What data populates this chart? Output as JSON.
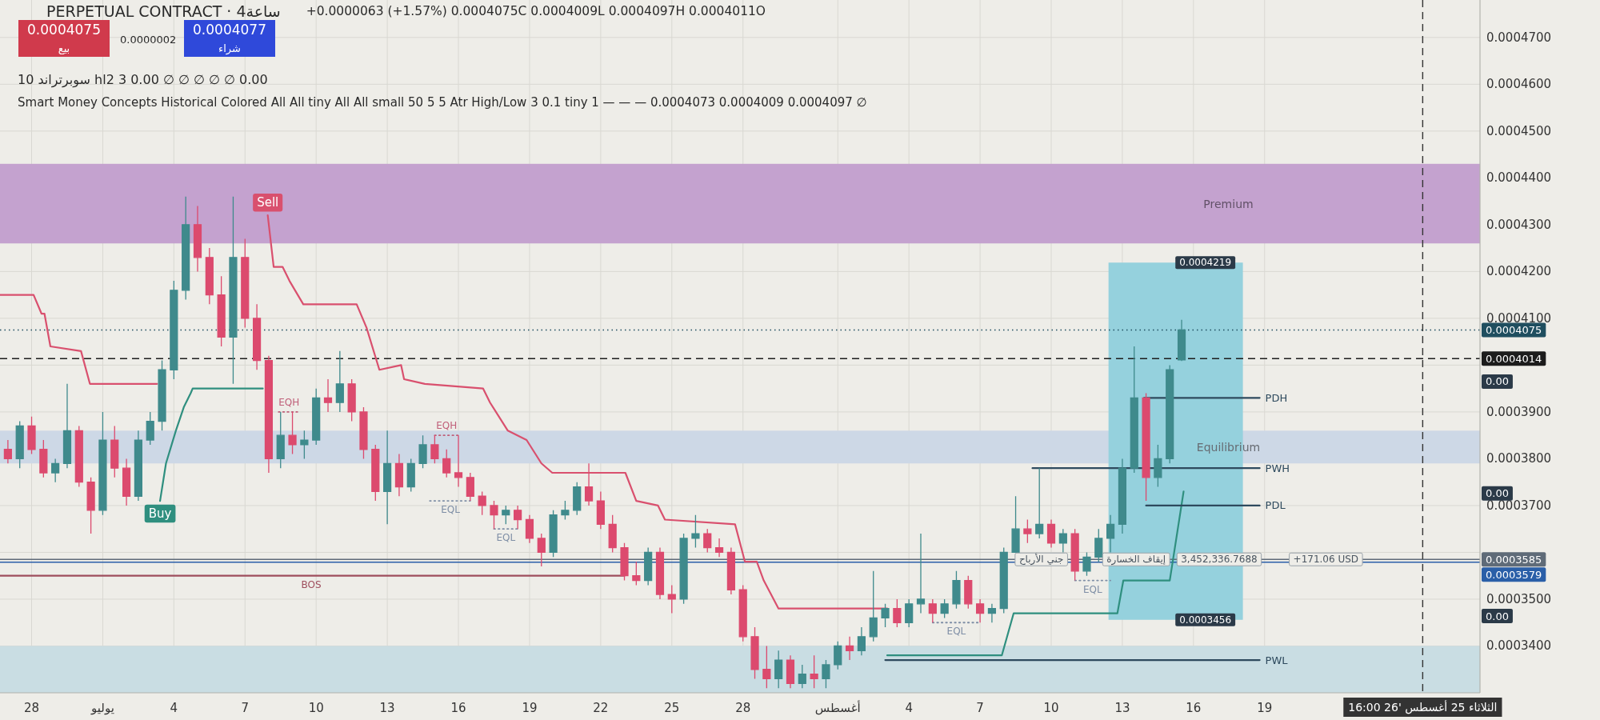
{
  "chart_data": {
    "type": "candlestick",
    "title": "PERPETUAL CONTRACT · 4ساعة",
    "subtitle": "+0.0000063 (+1.57%) 0.0004075C 0.0004009L 0.0004097H 0.0004011O",
    "xlim": [
      "2026-06-26T16:00",
      "2026-08-28T02:00"
    ],
    "xticks": [
      {
        "value": "2026-06-28",
        "label": "28"
      },
      {
        "value": "2026-07-01",
        "label": "يوليو"
      },
      {
        "value": "2026-07-04",
        "label": "4"
      },
      {
        "value": "2026-07-07",
        "label": "7"
      },
      {
        "value": "2026-07-10",
        "label": "10"
      },
      {
        "value": "2026-07-13",
        "label": "13"
      },
      {
        "value": "2026-07-16",
        "label": "16"
      },
      {
        "value": "2026-07-19",
        "label": "19"
      },
      {
        "value": "2026-07-22",
        "label": "22"
      },
      {
        "value": "2026-07-25",
        "label": "25"
      },
      {
        "value": "2026-07-28",
        "label": "28"
      },
      {
        "value": "2026-08-01",
        "label": "أغسطس"
      },
      {
        "value": "2026-08-04",
        "label": "4"
      },
      {
        "value": "2026-08-07",
        "label": "7"
      },
      {
        "value": "2026-08-10",
        "label": "10"
      },
      {
        "value": "2026-08-13",
        "label": "13"
      },
      {
        "value": "2026-08-16",
        "label": "16"
      },
      {
        "value": "2026-08-19",
        "label": "19"
      }
    ],
    "ylim": [
      0.00033,
      0.000478
    ],
    "yticks": [
      {
        "value": 0.00034,
        "label": "0.0003400"
      },
      {
        "value": 0.00035,
        "label": "0.0003500"
      },
      {
        "value": 0.00036,
        "label": null
      },
      {
        "value": 0.00037,
        "label": "0.0003700"
      },
      {
        "value": 0.00038,
        "label": "0.0003800"
      },
      {
        "value": 0.00039,
        "label": "0.0003900"
      },
      {
        "value": 0.0004,
        "label": null
      },
      {
        "value": 0.00041,
        "label": "0.0004100"
      },
      {
        "value": 0.00042,
        "label": "0.0004200"
      },
      {
        "value": 0.00043,
        "label": "0.0004300"
      },
      {
        "value": 0.00044,
        "label": "0.0004400"
      },
      {
        "value": 0.00045,
        "label": "0.0004500"
      },
      {
        "value": 0.00046,
        "label": "0.0004600"
      },
      {
        "value": 0.00047,
        "label": "0.0004700"
      }
    ],
    "grid": true,
    "bands": [
      {
        "axis": "y",
        "from": 0.000426,
        "to": 0.000443,
        "label": "Premium",
        "color": "#c4a2cf"
      },
      {
        "axis": "y",
        "from": 0.000379,
        "to": 0.000386,
        "label": "Equilibrium",
        "color": "#cdd8e6"
      },
      {
        "axis": "y",
        "from": 0.00033,
        "to": 0.00034,
        "color": "#c9dde3"
      }
    ],
    "series": [
      {
        "type": "line",
        "color": "#4fb3c6",
        "x": [
          "2026-08-12T10:00",
          "2026-08-18T02:00"
        ],
        "values": [
          null,
          null
        ],
        "lower": [
          0.0003456,
          0.0003456
        ],
        "upper": [
          0.0004219,
          0.0004219
        ]
      },
      {
        "type": "line",
        "color": "#d9506e",
        "x": [
          "2026-06-26T16:00",
          "2026-06-28T02:00",
          "2026-06-28T10:00",
          "2026-06-28T13:00",
          "2026-06-28T19:00",
          "2026-06-30T02:00",
          "2026-06-30T11:00",
          "2026-07-03T07:00"
        ],
        "values": [
          0.000415,
          0.000415,
          0.000411,
          0.000411,
          0.000404,
          0.000403,
          0.000396,
          0.000396
        ]
      },
      {
        "type": "line",
        "color": "#d9506e",
        "x": [
          "2026-07-07T23:00",
          "2026-07-08T05:00",
          "2026-07-08T14:00",
          "2026-07-08T21:00",
          "2026-07-09T11:00",
          "2026-07-11T17:00",
          "2026-07-12T03:00",
          "2026-07-12T16:00",
          "2026-07-13T14:00",
          "2026-07-13T17:00",
          "2026-07-14T14:00",
          "2026-07-17T01:00",
          "2026-07-17T08:00",
          "2026-07-18T02:00",
          "2026-07-18T21:00",
          "2026-07-19T12:00",
          "2026-07-19T23:00",
          "2026-07-23T01:00",
          "2026-07-23T12:00",
          "2026-07-24T10:00",
          "2026-07-24T17:00",
          "2026-07-27T16:00",
          "2026-07-27T21:00",
          "2026-07-28T02:00",
          "2026-07-28T14:00",
          "2026-07-28T21:00",
          "2026-07-29T12:00",
          "2026-08-03T02:00"
        ],
        "values": [
          0.000432,
          0.000421,
          0.000421,
          0.000418,
          0.000413,
          0.000413,
          0.000408,
          0.000399,
          0.0004,
          0.000397,
          0.000396,
          0.000395,
          0.000392,
          0.000386,
          0.000384,
          0.000379,
          0.000377,
          0.000377,
          0.000371,
          0.00037,
          0.000367,
          0.000366,
          0.000362,
          0.000358,
          0.000358,
          0.000354,
          0.000348,
          0.000348
        ],
        "value_labels": [
          "Sell",
          null,
          null,
          null,
          null,
          null,
          null,
          null,
          null,
          null,
          null,
          null,
          null,
          null,
          null,
          null,
          null,
          null,
          null,
          null,
          null,
          null,
          null,
          null,
          null,
          null,
          null,
          null
        ]
      },
      {
        "type": "line",
        "color": "#2f8f7f",
        "x": [
          "2026-07-03T10:00",
          "2026-07-03T16:00",
          "2026-07-04T02:00",
          "2026-07-04T10:00",
          "2026-07-04T17:00",
          "2026-07-04T19:00",
          "2026-07-07T18:00"
        ],
        "values": [
          0.000371,
          0.000379,
          0.000386,
          0.000391,
          0.000394,
          0.000395,
          0.000395
        ],
        "value_labels": [
          "Buy",
          null,
          null,
          null,
          null,
          null,
          null
        ]
      },
      {
        "type": "line",
        "color": "#2f8f7f",
        "x": [
          "2026-08-03T02:00",
          "2026-08-07T22:00",
          "2026-08-08T10:00",
          "2026-08-12T19:00",
          "2026-08-13T01:00",
          "2026-08-15T00:00",
          "2026-08-15T14:00"
        ],
        "values": [
          0.000338,
          0.000338,
          0.000347,
          0.000347,
          0.000354,
          0.000354,
          0.000373
        ]
      },
      {
        "type": "line",
        "color": "#9e4d5c",
        "x": [
          "2026-06-26T16:00",
          "2026-07-09T19:00",
          "2026-07-23T00:00"
        ],
        "values": [
          0.000355,
          0.000355,
          0.000355
        ],
        "value_labels": [
          null,
          "BOS",
          null
        ]
      },
      {
        "type": "line",
        "color": "#c0607a",
        "line_style": "dotted",
        "x": [
          "2026-07-08T10:00",
          "2026-07-09T07:00"
        ],
        "values": [
          0.00039,
          0.00039
        ],
        "value_labels": [
          "EQH",
          null
        ]
      },
      {
        "type": "line",
        "color": "#c0607a",
        "line_style": "dotted",
        "x": [
          "2026-07-15T00:00",
          "2026-07-16T00:00"
        ],
        "values": [
          0.000385,
          0.000385
        ],
        "value_labels": [
          "EQH",
          null
        ]
      },
      {
        "type": "line",
        "color": "#7f8fa6",
        "line_style": "dotted",
        "x": [
          "2026-07-14T19:00",
          "2026-07-15T16:00",
          "2026-07-16T12:00"
        ],
        "values": [
          0.000371,
          0.000371,
          0.000371
        ],
        "value_labels": [
          null,
          "EQL",
          null
        ]
      },
      {
        "type": "line",
        "color": "#7f8fa6",
        "line_style": "dotted",
        "x": [
          "2026-07-17T12:00",
          "2026-07-18T00:00",
          "2026-07-18T12:00"
        ],
        "values": [
          0.000365,
          0.000365,
          0.000365
        ],
        "value_labels": [
          null,
          "EQL",
          null
        ]
      },
      {
        "type": "line",
        "color": "#7f8fa6",
        "line_style": "dotted",
        "x": [
          "2026-08-05T00:00",
          "2026-08-06T00:00",
          "2026-08-07T00:00"
        ],
        "values": [
          0.000345,
          0.000345,
          0.000345
        ],
        "value_labels": [
          null,
          "EQL",
          null
        ]
      },
      {
        "type": "line",
        "color": "#7f8fa6",
        "line_style": "dotted",
        "x": [
          "2026-08-11T00:00",
          "2026-08-11T18:00",
          "2026-08-12T12:00"
        ],
        "values": [
          0.000354,
          0.000354,
          0.000354
        ],
        "value_labels": [
          null,
          "EQL",
          null
        ]
      },
      {
        "type": "line",
        "color": "#2e4a5e",
        "x": [
          "2026-08-13T22:00",
          "2026-08-18T19:00"
        ],
        "values": [
          0.000393,
          0.000393
        ],
        "value_labels": [
          null,
          "PDH"
        ]
      },
      {
        "type": "line",
        "color": "#2e4a5e",
        "x": [
          "2026-08-09T05:00",
          "2026-08-18T19:00"
        ],
        "values": [
          0.000378,
          0.000378
        ],
        "value_labels": [
          null,
          "PWH"
        ]
      },
      {
        "type": "line",
        "color": "#2e4a5e",
        "x": [
          "2026-08-14T00:00",
          "2026-08-18T19:00"
        ],
        "values": [
          0.00037,
          0.00037
        ],
        "value_labels": [
          null,
          "PDL"
        ]
      },
      {
        "type": "line",
        "color": "#2e4a5e",
        "x": [
          "2026-08-03T00:00",
          "2026-08-18T19:00"
        ],
        "values": [
          0.000337,
          0.000337
        ],
        "value_labels": [
          null,
          "PWL"
        ]
      },
      {
        "type": "candlestick",
        "color": "#3f8a8c",
        "x": [
          "2026-06-27T12:00",
          "2026-06-29T00:00",
          "2026-06-29T12:00",
          "2026-07-01T00:00",
          "2026-07-02T12:00",
          "2026-07-03T00:00",
          "2026-07-03T12:00",
          "2026-07-04T00:00",
          "2026-07-04T12:00",
          "2026-07-06T12:00",
          "2026-07-08T12:00",
          "2026-07-09T12:00",
          "2026-07-10T00:00",
          "2026-07-11T00:00",
          "2026-07-13T00:00",
          "2026-07-14T00:00",
          "2026-07-14T12:00",
          "2026-07-18T00:00",
          "2026-07-20T00:00",
          "2026-07-20T12:00",
          "2026-07-21T00:00",
          "2026-07-24T00:00",
          "2026-07-25T12:00",
          "2026-07-26T00:00",
          "2026-07-29T12:00",
          "2026-07-30T12:00",
          "2026-07-31T12:00",
          "2026-08-01T00:00",
          "2026-08-02T00:00",
          "2026-08-02T12:00",
          "2026-08-03T00:00",
          "2026-08-04T00:00",
          "2026-08-04T12:00",
          "2026-08-05T12:00",
          "2026-08-06T00:00",
          "2026-08-07T12:00",
          "2026-08-08T00:00",
          "2026-08-08T12:00",
          "2026-08-09T12:00",
          "2026-08-10T12:00",
          "2026-08-11T12:00",
          "2026-08-12T00:00",
          "2026-08-12T12:00",
          "2026-08-13T00:00",
          "2026-08-13T12:00",
          "2026-08-14T12:00",
          "2026-08-15T00:00",
          "2026-08-15T12:00"
        ],
        "ohlc": [
          [
            0.00038,
            0.000388,
            0.000378,
            0.000387
          ],
          [
            0.000377,
            0.00038,
            0.000375,
            0.000379
          ],
          [
            0.000379,
            0.000396,
            0.000378,
            0.000386
          ],
          [
            0.000369,
            0.00039,
            0.000368,
            0.000384
          ],
          [
            0.000372,
            0.000386,
            0.000371,
            0.000384
          ],
          [
            0.000384,
            0.00039,
            0.000383,
            0.000388
          ],
          [
            0.000388,
            0.000401,
            0.000386,
            0.000399
          ],
          [
            0.000399,
            0.000418,
            0.000397,
            0.000416
          ],
          [
            0.000416,
            0.000436,
            0.000414,
            0.00043
          ],
          [
            0.000406,
            0.000436,
            0.000396,
            0.000423
          ],
          [
            0.00038,
            0.00039,
            0.000378,
            0.000385
          ],
          [
            0.000383,
            0.000386,
            0.00038,
            0.000384
          ],
          [
            0.000384,
            0.000395,
            0.000383,
            0.000393
          ],
          [
            0.000392,
            0.000403,
            0.00039,
            0.000396
          ],
          [
            0.000373,
            0.000386,
            0.000366,
            0.000379
          ],
          [
            0.000374,
            0.00038,
            0.000373,
            0.000379
          ],
          [
            0.000379,
            0.000385,
            0.000378,
            0.000383
          ],
          [
            0.000368,
            0.00037,
            0.000366,
            0.000369
          ],
          [
            0.00036,
            0.000369,
            0.000359,
            0.000368
          ],
          [
            0.000368,
            0.000371,
            0.000367,
            0.000369
          ],
          [
            0.000369,
            0.000375,
            0.000368,
            0.000374
          ],
          [
            0.000354,
            0.000361,
            0.000353,
            0.00036
          ],
          [
            0.00035,
            0.000364,
            0.000349,
            0.000363
          ],
          [
            0.000363,
            0.000368,
            0.000361,
            0.000364
          ],
          [
            0.000333,
            0.000339,
            0.000331,
            0.000337
          ],
          [
            0.000332,
            0.000336,
            0.000331,
            0.000334
          ],
          [
            0.000333,
            0.000337,
            0.000331,
            0.000336
          ],
          [
            0.000336,
            0.000341,
            0.000335,
            0.00034
          ],
          [
            0.000339,
            0.000344,
            0.000338,
            0.000342
          ],
          [
            0.000342,
            0.000356,
            0.000341,
            0.000346
          ],
          [
            0.000346,
            0.000349,
            0.000344,
            0.000348
          ],
          [
            0.000345,
            0.00035,
            0.000344,
            0.000349
          ],
          [
            0.000349,
            0.000364,
            0.000347,
            0.00035
          ],
          [
            0.000347,
            0.00035,
            0.000346,
            0.000349
          ],
          [
            0.000349,
            0.000356,
            0.000348,
            0.000354
          ],
          [
            0.000347,
            0.000349,
            0.000345,
            0.000348
          ],
          [
            0.000348,
            0.000361,
            0.000347,
            0.00036
          ],
          [
            0.00036,
            0.000372,
            0.00036,
            0.000365
          ],
          [
            0.000364,
            0.000378,
            0.000363,
            0.000366
          ],
          [
            0.000362,
            0.000365,
            0.00036,
            0.000364
          ],
          [
            0.000356,
            0.00036,
            0.000355,
            0.000359
          ],
          [
            0.000359,
            0.000365,
            0.000358,
            0.000363
          ],
          [
            0.000363,
            0.000368,
            0.00036,
            0.000366
          ],
          [
            0.000366,
            0.00038,
            0.000364,
            0.000378
          ],
          [
            0.000378,
            0.000404,
            0.000377,
            0.000393
          ],
          [
            0.000376,
            0.000383,
            0.000374,
            0.00038
          ],
          [
            0.00038,
            0.0004,
            0.000379,
            0.000399
          ],
          [
            0.0004011,
            0.0004097,
            0.0004009,
            0.0004075
          ]
        ]
      },
      {
        "type": "candlestick",
        "color": "#dc4a6e",
        "x": [
          "2026-06-27T00:00",
          "2026-06-28T00:00",
          "2026-06-28T12:00",
          "2026-06-30T00:00",
          "2026-06-30T12:00",
          "2026-07-01T12:00",
          "2026-07-02T00:00",
          "2026-07-05T00:00",
          "2026-07-05T12:00",
          "2026-07-06T00:00",
          "2026-07-07T00:00",
          "2026-07-07T12:00",
          "2026-07-08T00:00",
          "2026-07-09T00:00",
          "2026-07-10T12:00",
          "2026-07-11T12:00",
          "2026-07-12T00:00",
          "2026-07-12T12:00",
          "2026-07-13T12:00",
          "2026-07-15T00:00",
          "2026-07-15T12:00",
          "2026-07-16T00:00",
          "2026-07-16T12:00",
          "2026-07-17T00:00",
          "2026-07-17T12:00",
          "2026-07-18T12:00",
          "2026-07-19T00:00",
          "2026-07-19T12:00",
          "2026-07-21T12:00",
          "2026-07-22T00:00",
          "2026-07-22T12:00",
          "2026-07-23T00:00",
          "2026-07-23T12:00",
          "2026-07-24T12:00",
          "2026-07-25T00:00",
          "2026-07-26T12:00",
          "2026-07-27T00:00",
          "2026-07-27T12:00",
          "2026-07-28T00:00",
          "2026-07-28T12:00",
          "2026-07-29T00:00",
          "2026-07-30T00:00",
          "2026-07-31T00:00",
          "2026-08-01T12:00",
          "2026-08-03T12:00",
          "2026-08-05T00:00",
          "2026-08-06T12:00",
          "2026-08-07T00:00",
          "2026-08-09T00:00",
          "2026-08-10T00:00",
          "2026-08-11T00:00",
          "2026-08-14T00:00"
        ],
        "ohlc": [
          [
            0.000382,
            0.000384,
            0.000379,
            0.00038
          ],
          [
            0.000387,
            0.000389,
            0.000381,
            0.000382
          ],
          [
            0.000382,
            0.000384,
            0.000376,
            0.000377
          ],
          [
            0.000386,
            0.000387,
            0.000374,
            0.000375
          ],
          [
            0.000375,
            0.000376,
            0.000364,
            0.000369
          ],
          [
            0.000384,
            0.000387,
            0.000376,
            0.000378
          ],
          [
            0.000378,
            0.00038,
            0.00037,
            0.000372
          ],
          [
            0.00043,
            0.000434,
            0.00042,
            0.000423
          ],
          [
            0.000423,
            0.000425,
            0.000413,
            0.000415
          ],
          [
            0.000415,
            0.000419,
            0.000404,
            0.000406
          ],
          [
            0.000423,
            0.000427,
            0.000408,
            0.00041
          ],
          [
            0.00041,
            0.000413,
            0.000399,
            0.000401
          ],
          [
            0.000401,
            0.000402,
            0.000377,
            0.00038
          ],
          [
            0.000385,
            0.00039,
            0.000381,
            0.000383
          ],
          [
            0.000393,
            0.000397,
            0.00039,
            0.000392
          ],
          [
            0.000396,
            0.000397,
            0.000388,
            0.00039
          ],
          [
            0.00039,
            0.000391,
            0.00038,
            0.000382
          ],
          [
            0.000382,
            0.000383,
            0.000371,
            0.000373
          ],
          [
            0.000379,
            0.000381,
            0.000372,
            0.000374
          ],
          [
            0.000383,
            0.000385,
            0.000379,
            0.00038
          ],
          [
            0.00038,
            0.000382,
            0.000376,
            0.000377
          ],
          [
            0.000377,
            0.000385,
            0.000374,
            0.000376
          ],
          [
            0.000376,
            0.000377,
            0.000371,
            0.000372
          ],
          [
            0.000372,
            0.000373,
            0.000368,
            0.00037
          ],
          [
            0.00037,
            0.000371,
            0.000365,
            0.000368
          ],
          [
            0.000369,
            0.00037,
            0.000365,
            0.000367
          ],
          [
            0.000367,
            0.000368,
            0.000362,
            0.000363
          ],
          [
            0.000363,
            0.000364,
            0.000357,
            0.00036
          ],
          [
            0.000374,
            0.000379,
            0.00037,
            0.000371
          ],
          [
            0.000371,
            0.000373,
            0.000365,
            0.000366
          ],
          [
            0.000366,
            0.000368,
            0.00036,
            0.000361
          ],
          [
            0.000361,
            0.000362,
            0.000354,
            0.000355
          ],
          [
            0.000355,
            0.000358,
            0.000353,
            0.000354
          ],
          [
            0.00036,
            0.000361,
            0.00035,
            0.000351
          ],
          [
            0.000351,
            0.000353,
            0.000347,
            0.00035
          ],
          [
            0.000364,
            0.000365,
            0.00036,
            0.000361
          ],
          [
            0.000361,
            0.000363,
            0.000359,
            0.00036
          ],
          [
            0.00036,
            0.000361,
            0.000351,
            0.000352
          ],
          [
            0.000352,
            0.000353,
            0.000341,
            0.000342
          ],
          [
            0.000342,
            0.000344,
            0.000333,
            0.000335
          ],
          [
            0.000335,
            0.00034,
            0.000331,
            0.000333
          ],
          [
            0.000337,
            0.000338,
            0.000331,
            0.000332
          ],
          [
            0.000334,
            0.000338,
            0.000331,
            0.000333
          ],
          [
            0.00034,
            0.000342,
            0.000337,
            0.000339
          ],
          [
            0.000348,
            0.00035,
            0.000344,
            0.000345
          ],
          [
            0.000349,
            0.00035,
            0.000345,
            0.000347
          ],
          [
            0.000354,
            0.000355,
            0.000348,
            0.000349
          ],
          [
            0.000349,
            0.00035,
            0.000345,
            0.000347
          ],
          [
            0.000365,
            0.000367,
            0.000362,
            0.000364
          ],
          [
            0.000366,
            0.000367,
            0.000361,
            0.000362
          ],
          [
            0.000364,
            0.000365,
            0.000354,
            0.000356
          ],
          [
            0.000393,
            0.000394,
            0.000371,
            0.000376
          ]
        ]
      }
    ],
    "ref_lines": [
      {
        "axis": "y",
        "value": 0.0004075,
        "label": "0.0004075",
        "color": "#1f4e5f",
        "line_style": "dotted"
      },
      {
        "axis": "y",
        "value": 0.0004014,
        "label": "0.0004014",
        "color": "#1c1c1c",
        "line_style": "dashed"
      },
      {
        "axis": "y",
        "value": 0.0003585,
        "label": "0.0003585",
        "color": "#5f6b78",
        "line_style": "solid"
      },
      {
        "axis": "y",
        "value": 0.0003579,
        "label": "0.0003579",
        "color": "#2a5fa8",
        "line_style": "solid"
      },
      {
        "axis": "x",
        "value": "2026-08-25T16:00",
        "label": "الثلاثاء 25 أغسطس '26 16:00",
        "color": "#333333",
        "line_style": "dashed"
      }
    ],
    "annotations": [
      "0.0004075",
      "بيع",
      "0.0000002",
      "0.0004077",
      "شراء",
      "سوبرتراند 10 hl2 3 0.00 ∅ ∅ ∅ ∅ ∅ 0.00",
      "Smart Money Concepts Historical Colored All All tiny All All small 50 5 5 Atr High/Low 3 0.1 tiny 1 — — — 0.0004073 0.0004009 0.0004097 ∅",
      {
        "text": "جني الأرباح",
        "x": "2026-08-09T14:00",
        "y": 0.0003585
      },
      {
        "text": "إيقاف الخسارة",
        "x": "2026-08-13T14:00",
        "y": 0.0003585
      },
      {
        "text": "3,452,336.7688",
        "x": "2026-08-17T02:00",
        "y": 0.0003585
      },
      {
        "text": "+171.06 USD",
        "x": "2026-08-21T14:00",
        "y": 0.0003585
      },
      {
        "text": "0.0004219",
        "x": "2026-08-16T12:00",
        "y": 0.0004219
      },
      {
        "text": "0.0003456",
        "x": "2026-08-16T12:00",
        "y": 0.0003456
      },
      {
        "text": "0.00",
        "y": 0.0003965
      },
      {
        "text": "0.00",
        "y": 0.0003726
      },
      {
        "text": "0.00",
        "y": 0.0003464
      }
    ]
  }
}
